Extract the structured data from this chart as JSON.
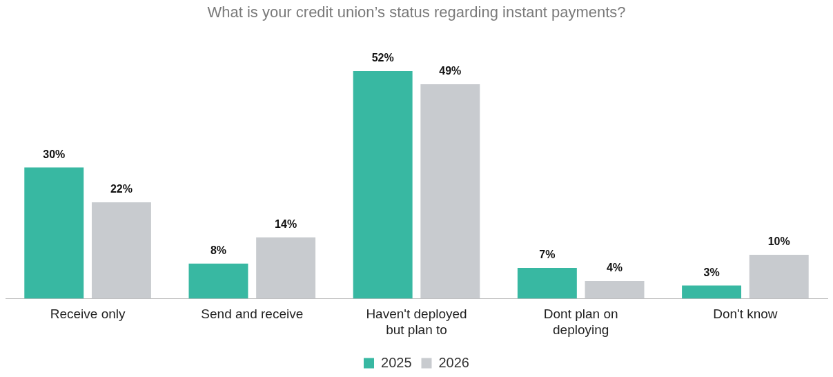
{
  "chart_data": {
    "type": "bar",
    "title": "What is your credit union’s status regarding instant payments?",
    "categories": [
      "Receive only",
      "Send and receive",
      "Haven't deployed but plan to",
      "Dont plan on deploying",
      "Don't know"
    ],
    "series": [
      {
        "name": "2025",
        "color": "#38b8a2",
        "values": [
          30,
          8,
          52,
          7,
          3
        ],
        "value_labels": [
          "30%",
          "8%",
          "52%",
          "7%",
          "3%"
        ]
      },
      {
        "name": "2026",
        "color": "#c8cbcf",
        "values": [
          22,
          14,
          49,
          4,
          10
        ],
        "value_labels": [
          "22%",
          "14%",
          "49%",
          "4%",
          "10%"
        ]
      }
    ],
    "grid": false,
    "legend": "bottom",
    "tick_labels": "x"
  }
}
